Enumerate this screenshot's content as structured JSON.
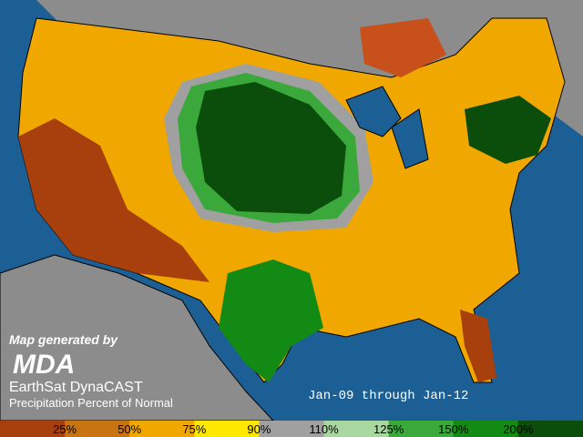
{
  "branding": {
    "generated_by": "Map generated by",
    "logo": "MDA",
    "product": "EarthSat DynaCAST",
    "subtitle": "Precipitation Percent of Normal"
  },
  "date_range": "Jan-09 through Jan-12",
  "legend": {
    "colors": [
      "#a8400e",
      "#c87412",
      "#f0a800",
      "#ffe800",
      "#a0a0a0",
      "#a8d8a0",
      "#3aa83a",
      "#138a13",
      "#0b4d0b"
    ],
    "labels": [
      "25%",
      "50%",
      "75%",
      "90%",
      "110%",
      "125%",
      "150%",
      "200%"
    ]
  }
}
